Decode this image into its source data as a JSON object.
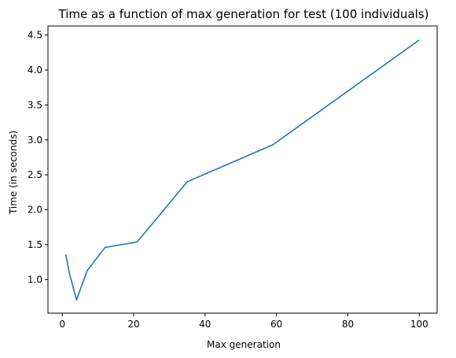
{
  "chart_data": {
    "type": "line",
    "title": "Time as a function of max generation for test (100 individuals)",
    "xlabel": "Max generation",
    "ylabel": "Time (in seconds)",
    "xlim": [
      -4,
      105
    ],
    "ylim": [
      0.52,
      4.63
    ],
    "xticks": [
      0,
      20,
      40,
      60,
      80,
      100
    ],
    "xtick_labels": [
      "0",
      "20",
      "40",
      "60",
      "80",
      "100"
    ],
    "yticks": [
      1.0,
      1.5,
      2.0,
      2.5,
      3.0,
      3.5,
      4.0,
      4.5
    ],
    "ytick_labels": [
      "1.0",
      "1.5",
      "2.0",
      "2.5",
      "3.0",
      "3.5",
      "4.0",
      "4.5"
    ],
    "grid": false,
    "series": [
      {
        "color": "#1f77b4",
        "x": [
          1,
          2,
          4,
          7,
          12,
          21,
          35,
          59,
          100
        ],
        "y": [
          1.36,
          1.09,
          0.71,
          1.13,
          1.46,
          1.54,
          2.4,
          2.93,
          4.43
        ]
      }
    ]
  }
}
